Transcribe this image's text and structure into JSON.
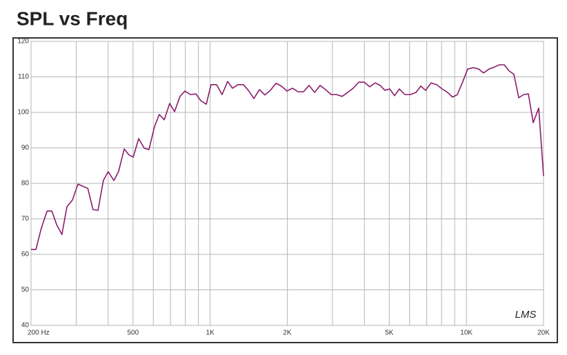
{
  "chart_data": {
    "type": "line",
    "title": "SPL vs Freq",
    "logx": true,
    "grid": true,
    "annotation": "LMS",
    "xlim": [
      200,
      20000
    ],
    "xticks": [
      {
        "value": 200,
        "label": "200 Hz"
      },
      500,
      {
        "value": 1000,
        "label": "1K"
      },
      {
        "value": 2000,
        "label": "2K"
      },
      {
        "value": 5000,
        "label": "5K"
      },
      {
        "value": 10000,
        "label": "10K"
      },
      {
        "value": 20000,
        "label": "20K"
      }
    ],
    "xgrid": [
      200,
      300,
      400,
      500,
      600,
      700,
      800,
      900,
      1000,
      2000,
      3000,
      4000,
      5000,
      6000,
      7000,
      8000,
      9000,
      10000,
      20000
    ],
    "ylim": [
      40,
      120
    ],
    "yticks": [
      40,
      50,
      60,
      70,
      80,
      90,
      100,
      110,
      120
    ],
    "x": [
      200,
      209,
      219,
      231,
      241,
      252,
      264,
      276,
      290,
      305,
      318,
      333,
      349,
      365,
      383,
      400,
      421,
      439,
      462,
      482,
      501,
      526,
      553,
      577,
      606,
      633,
      662,
      695,
      726,
      763,
      797,
      837,
      880,
      919,
      966,
      1008,
      1060,
      1113,
      1170,
      1222,
      1284,
      1349,
      1409,
      1481,
      1556,
      1635,
      1718,
      1806,
      1897,
      1994,
      2095,
      2202,
      2314,
      2432,
      2556,
      2686,
      2822,
      2966,
      3116,
      3274,
      3440,
      3615,
      3799,
      3992,
      4194,
      4407,
      4603,
      4809,
      5020,
      5244,
      5476,
      5754,
      6046,
      6354,
      6638,
      6930,
      7282,
      7654,
      8042,
      8452,
      8826,
      9216,
      9684,
      10116,
      10630,
      11170,
      11664,
      12258,
      12882,
      13452,
      14050,
      14672,
      15324,
      16004,
      16710,
      17452,
      18224,
      19152,
      20000
    ],
    "series": [
      {
        "name": "SPL",
        "color": "#8b1a6b",
        "values": [
          61.4,
          61.4,
          67.2,
          72.2,
          72.2,
          68.3,
          65.6,
          73.4,
          75.3,
          79.8,
          79.2,
          78.6,
          72.6,
          72.4,
          80.8,
          83.3,
          80.8,
          83.3,
          89.7,
          88,
          87.4,
          92.6,
          89.9,
          89.5,
          95.9,
          99.4,
          97.9,
          102.5,
          100.2,
          104.5,
          106,
          105,
          105.2,
          103.3,
          102.3,
          107.8,
          107.8,
          105,
          108.7,
          106.8,
          107.8,
          107.8,
          106.2,
          103.9,
          106.4,
          104.9,
          106.2,
          108.2,
          107.4,
          106,
          106.8,
          105.8,
          105.8,
          107.6,
          105.6,
          107.6,
          106.4,
          105,
          105,
          104.5,
          105.6,
          106.8,
          108.5,
          108.5,
          107.2,
          108.3,
          107.6,
          106.2,
          106.6,
          104.7,
          106.6,
          105,
          105,
          105.6,
          107.4,
          106.2,
          108.3,
          107.8,
          106.6,
          105.6,
          104.3,
          105,
          108.7,
          112.2,
          112.6,
          112.2,
          111.1,
          112.2,
          112.8,
          113.4,
          113.4,
          111.7,
          110.7,
          104.1,
          105,
          105.2,
          97.1,
          101.2,
          82.1
        ]
      }
    ]
  }
}
